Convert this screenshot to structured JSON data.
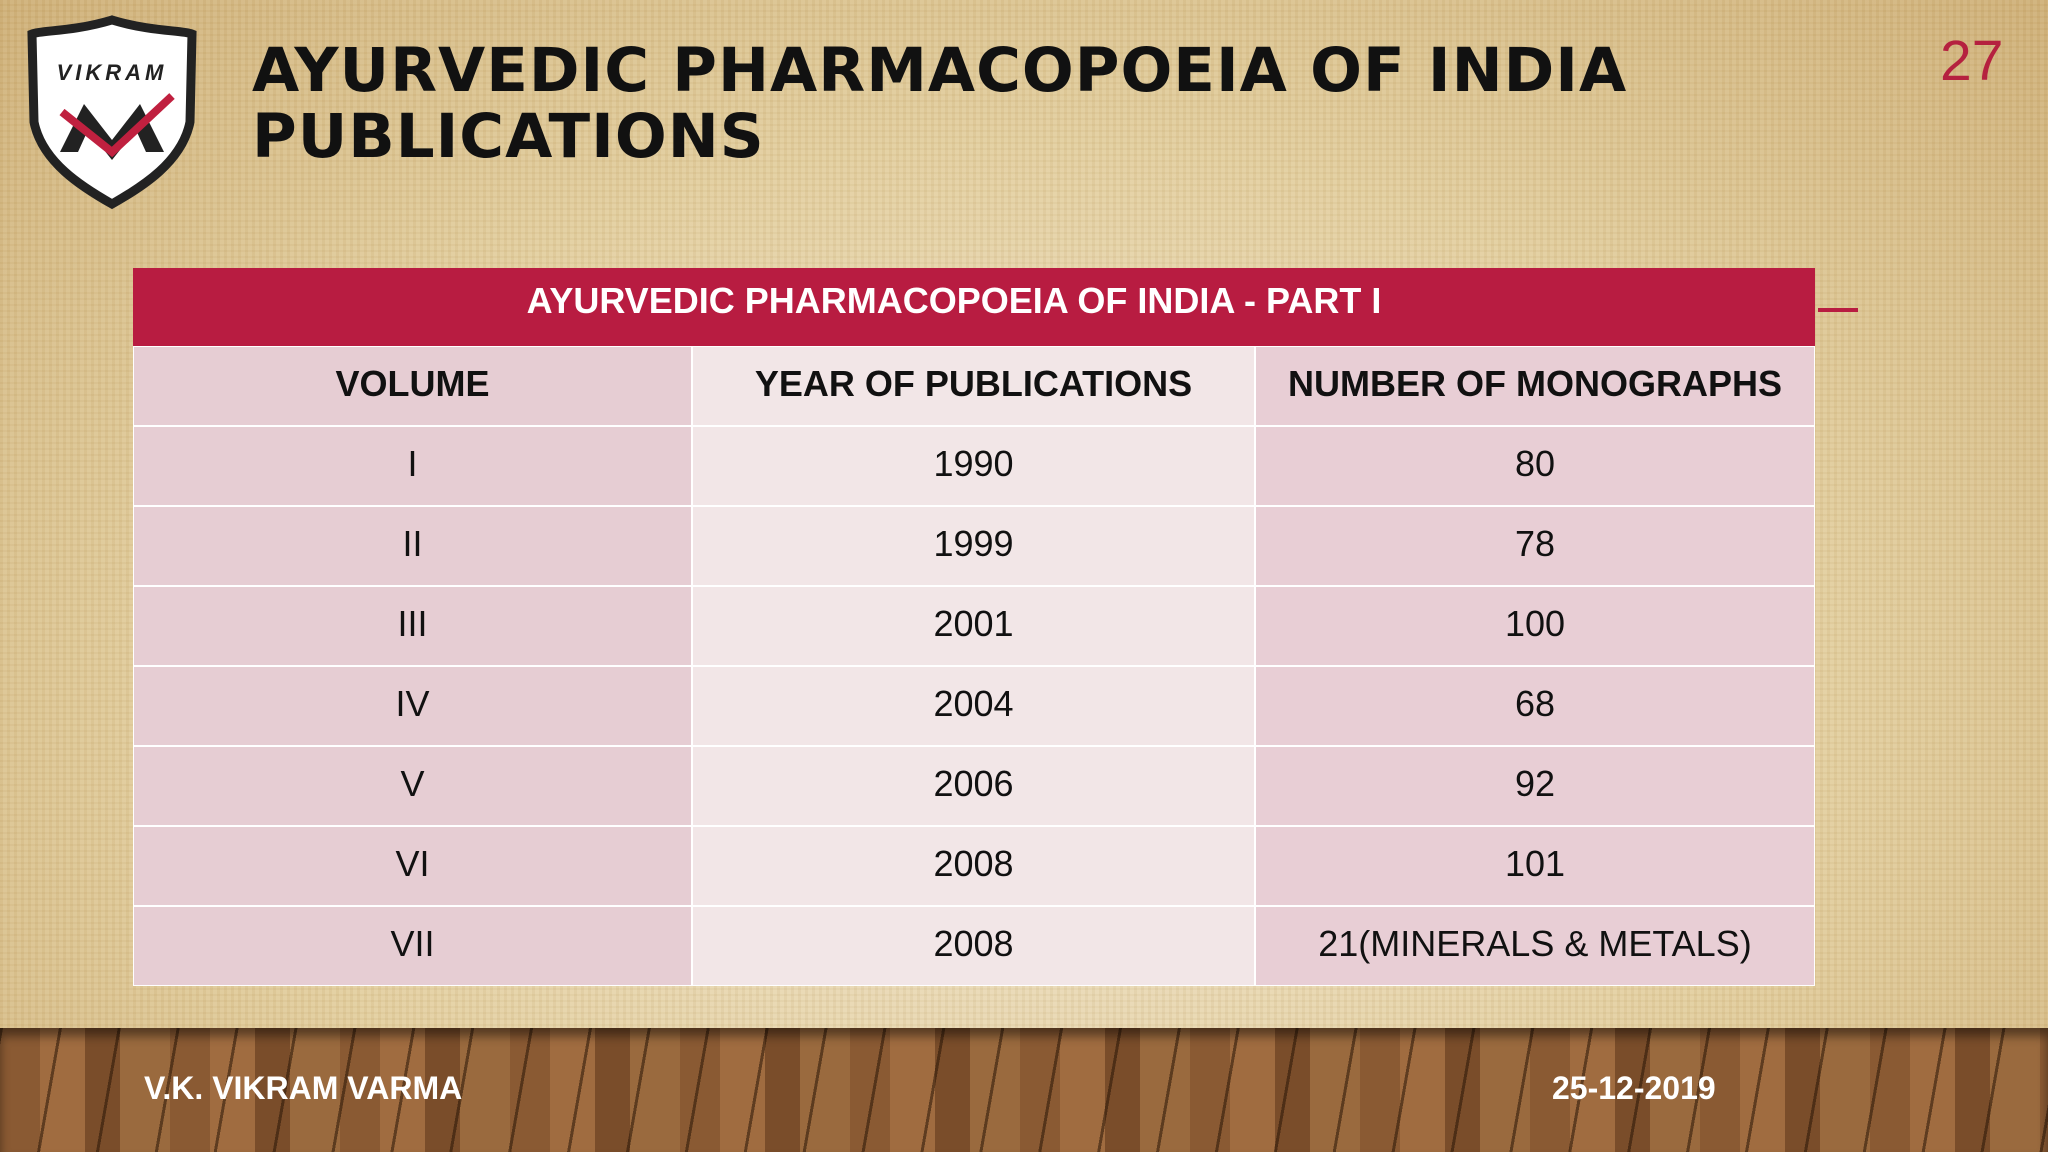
{
  "logo": {
    "text": "VIKRAM"
  },
  "page_number": "27",
  "header": {
    "title_lines": [
      "AYURVEDIC PHARMACOPOEIA OF INDIA",
      "PUBLICATIONS"
    ]
  },
  "table": {
    "caption": "AYURVEDIC PHARMACOPOEIA OF INDIA - PART I",
    "columns": [
      "VOLUME",
      "YEAR OF PUBLICATIONS",
      "NUMBER OF MONOGRAPHS"
    ],
    "rows": [
      [
        "I",
        "1990",
        "80"
      ],
      [
        "II",
        "1999",
        "78"
      ],
      [
        "III",
        "2001",
        "100"
      ],
      [
        "IV",
        "2004",
        "68"
      ],
      [
        "V",
        "2006",
        "92"
      ],
      [
        "VI",
        "2008",
        "101"
      ],
      [
        "VII",
        "2008",
        "21(MINERALS & METALS)"
      ]
    ]
  },
  "footer": {
    "author": "V.K. VIKRAM VARMA",
    "date": "25-12-2019"
  }
}
